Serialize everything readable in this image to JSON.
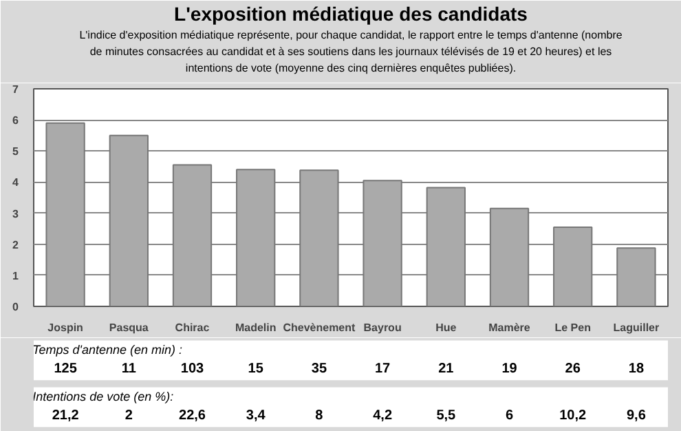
{
  "chart_data": {
    "type": "bar",
    "title": "L'exposition médiatique des candidats",
    "subtitle": "L'indice d'exposition médiatique représente, pour chaque candidat, le rapport entre le temps d'antenne (nombre de minutes consacrées au candidat et à ses soutiens dans les journaux télévisés de 19 et 20 heures) et les intentions de vote (moyenne des cinq dernières enquêtes publiées).",
    "categories": [
      "Jospin",
      "Pasqua",
      "Chirac",
      "Madelin",
      "Chevènement",
      "Bayrou",
      "Hue",
      "Mamère",
      "Le Pen",
      "Laguiller"
    ],
    "values": [
      5.9,
      5.5,
      4.55,
      4.4,
      4.38,
      4.05,
      3.82,
      3.15,
      2.55,
      1.88
    ],
    "color": "#aaaaaa",
    "ylim": [
      0,
      7
    ],
    "yticks": [
      0,
      1,
      2,
      3,
      4,
      5,
      6,
      7
    ],
    "grid": "y",
    "annotations": [
      "Temps d'antenne (en min) :",
      "125",
      "11",
      "103",
      "15",
      "35",
      "17",
      "21",
      "19",
      "26",
      "18",
      "Intentions de vote (en %):",
      "21,2",
      "2",
      "22,6",
      "3,4",
      "8",
      "4,2",
      "5,5",
      "6",
      "10,2",
      "9,6"
    ]
  }
}
